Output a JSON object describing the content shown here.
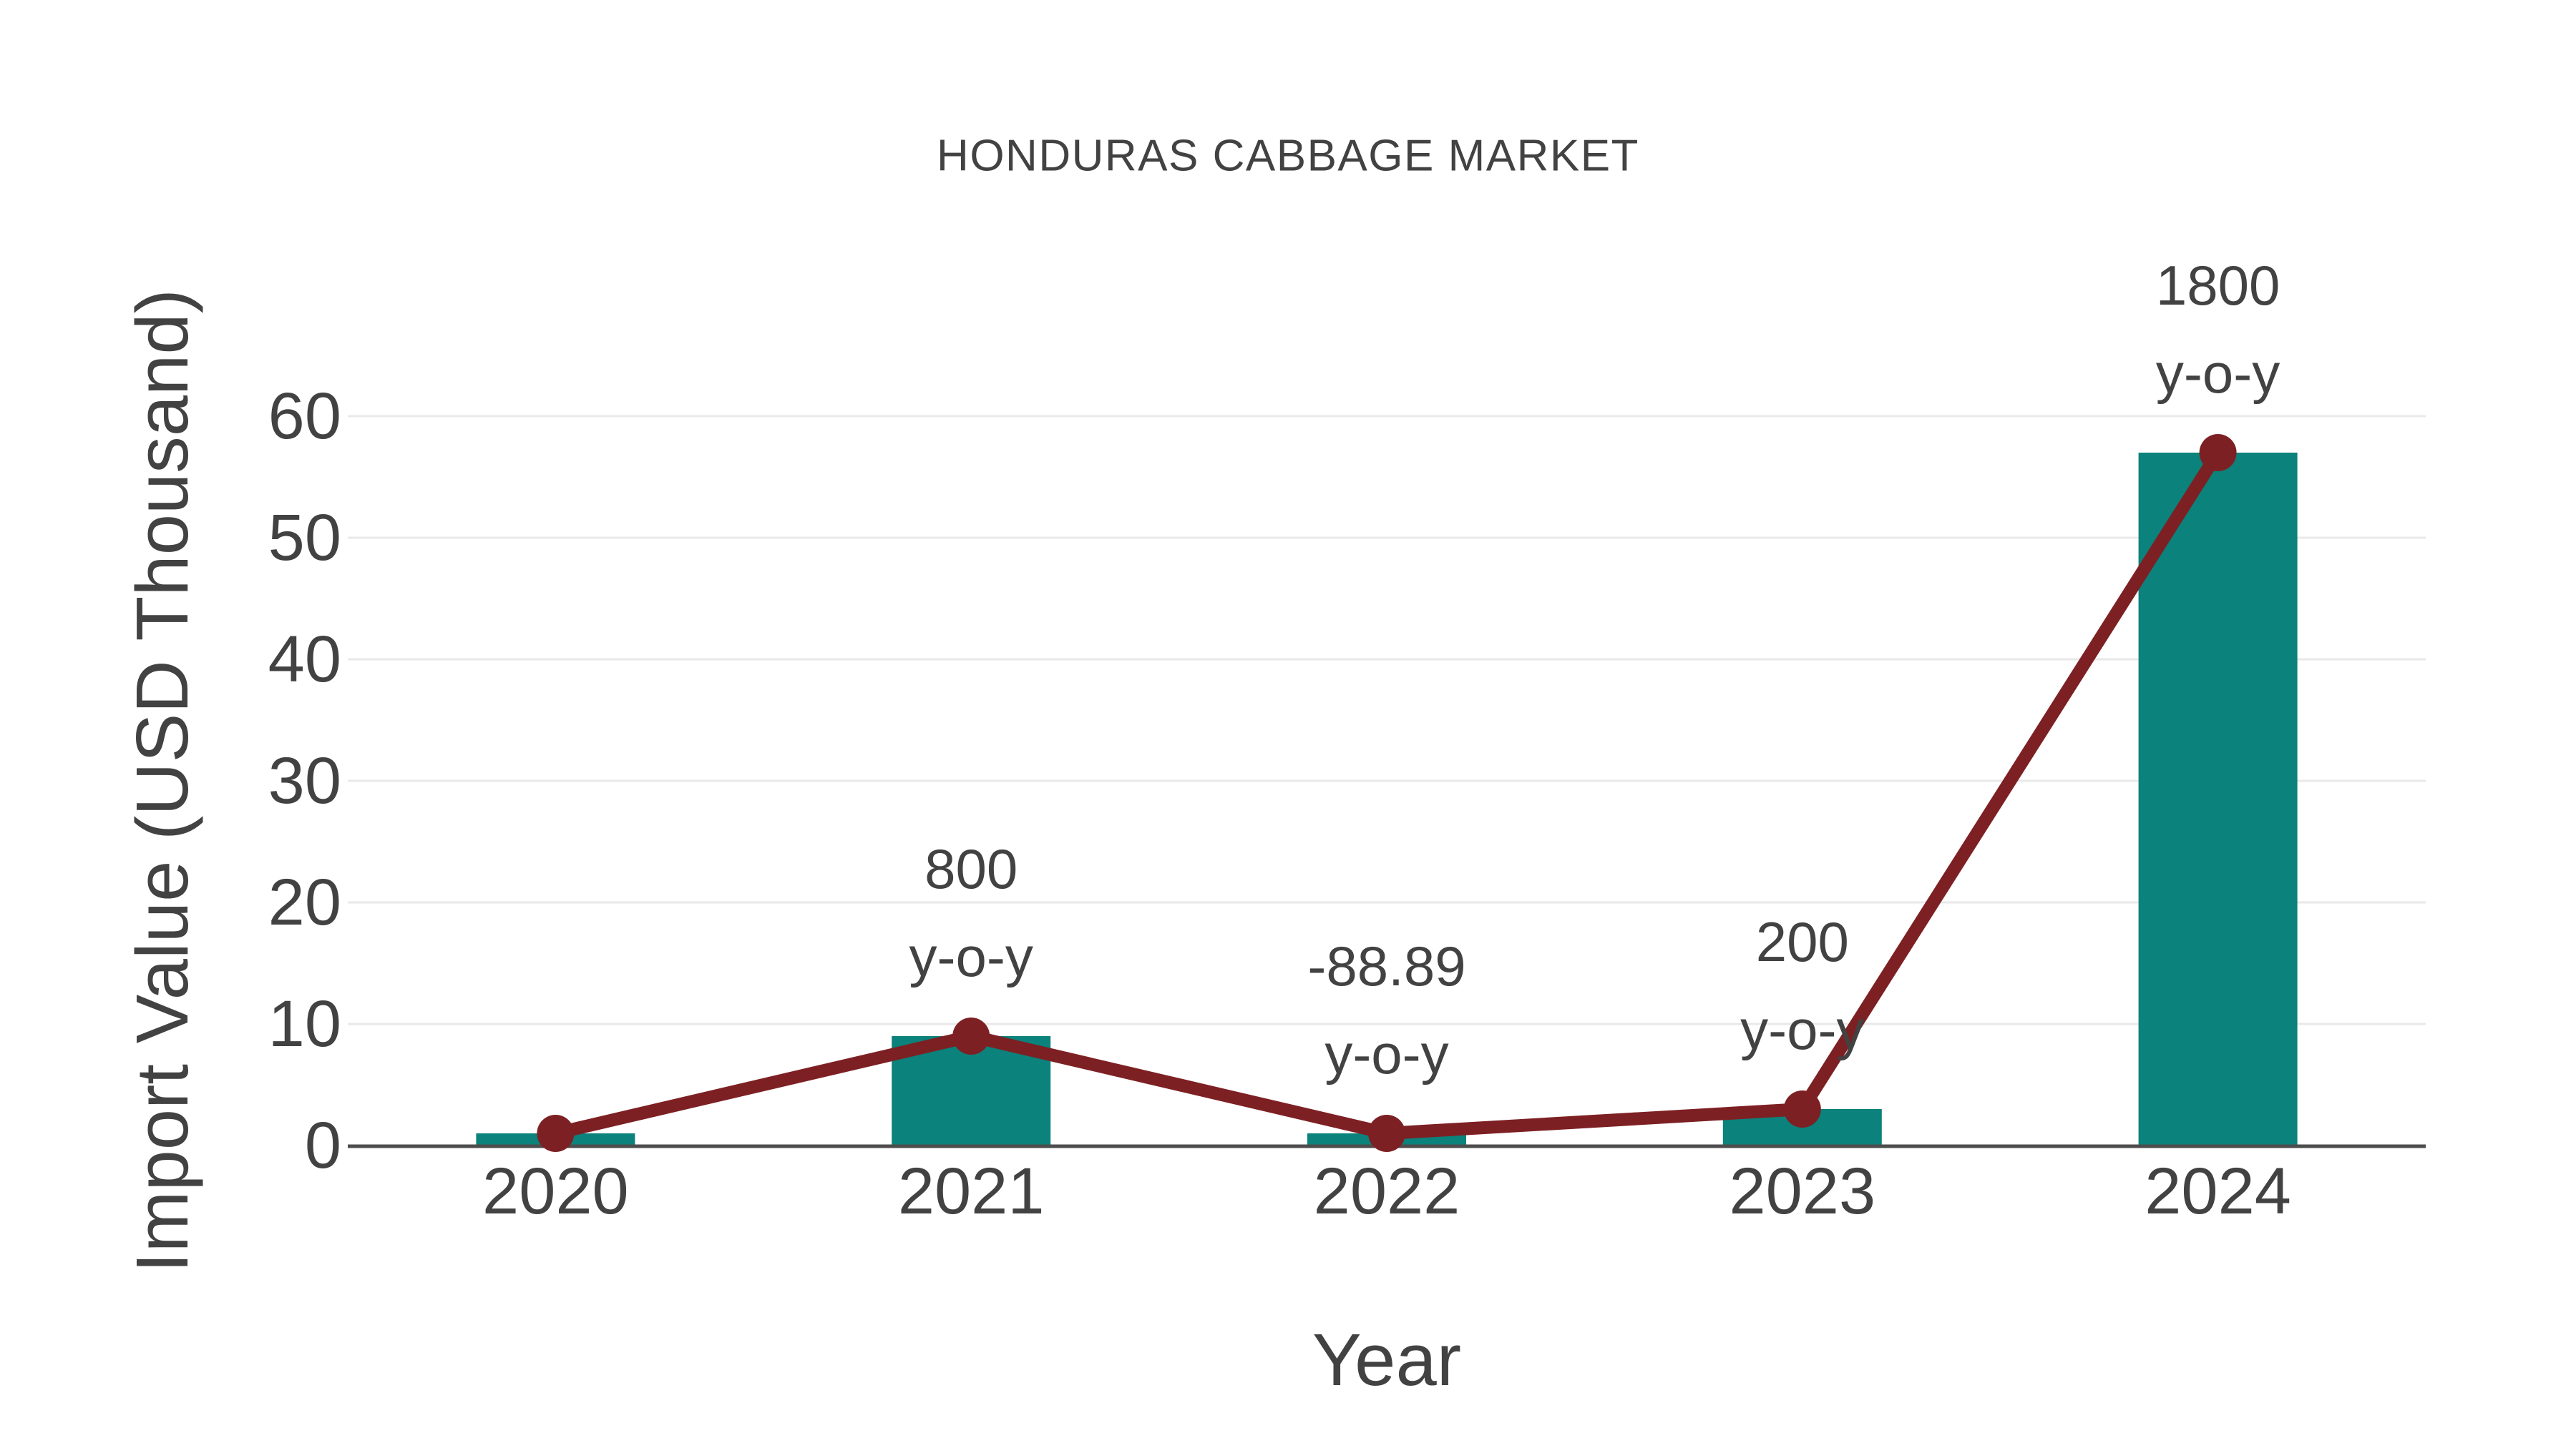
{
  "chart": {
    "title": "HONDURAS CABBAGE MARKET",
    "x_axis_title": "Year",
    "y_axis_title": "Import Value (USD Thousand)"
  },
  "chart_data": {
    "type": "bar",
    "title": "HONDURAS CABBAGE MARKET",
    "xlabel": "Year",
    "ylabel": "Import Value (USD Thousand)",
    "categories": [
      "2020",
      "2021",
      "2022",
      "2023",
      "2024"
    ],
    "series": [
      {
        "name": "Import Value bars",
        "type": "bar",
        "values": [
          1,
          9,
          1,
          3,
          57
        ],
        "color": "#0b827b"
      },
      {
        "name": "Import Value trend line",
        "type": "line",
        "values": [
          1,
          9,
          1,
          3,
          57
        ],
        "color": "#7d2023"
      }
    ],
    "annotations": [
      {
        "category": "2021",
        "lines": [
          "800",
          "y-o-y"
        ]
      },
      {
        "category": "2022",
        "lines": [
          "-88.89",
          "y-o-y"
        ]
      },
      {
        "category": "2023",
        "lines": [
          "200",
          "y-o-y"
        ]
      },
      {
        "category": "2024",
        "lines": [
          "1800",
          "y-o-y"
        ]
      }
    ],
    "yticks": [
      0,
      10,
      20,
      30,
      40,
      50,
      60
    ],
    "ylim": [
      0,
      60
    ],
    "grid": true,
    "legend": false,
    "colors": {
      "grid": "#e9e9e9",
      "axis_line": "#4d4d4d",
      "text": "#424242"
    }
  }
}
